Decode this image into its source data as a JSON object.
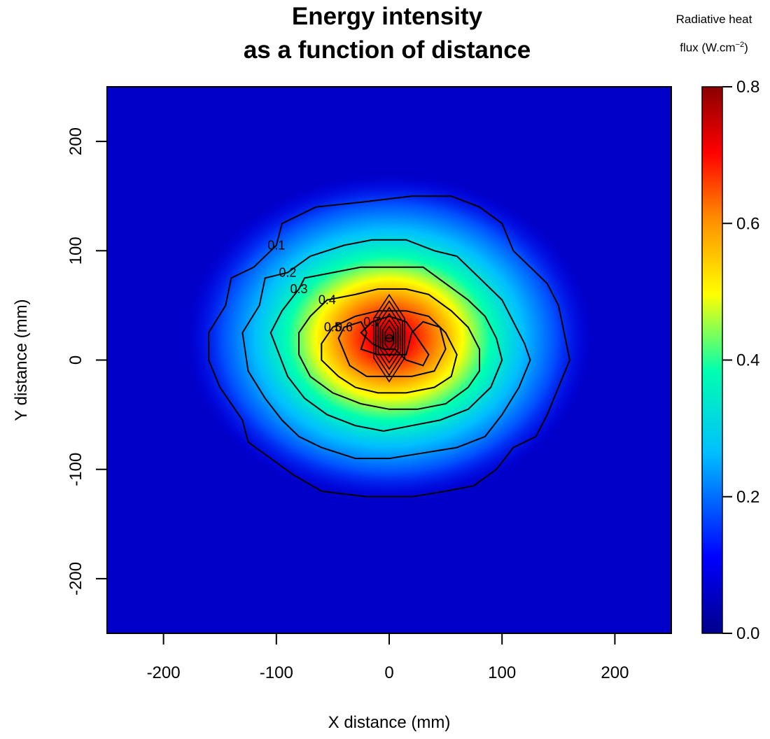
{
  "chart_data": {
    "type": "heatmap",
    "title_lines": [
      "Energy intensity",
      "as a function of distance"
    ],
    "xlabel": "X distance (mm)",
    "ylabel": "Y distance (mm)",
    "xlim": [
      -250,
      250
    ],
    "ylim": [
      -250,
      250
    ],
    "xticks": [
      -200,
      -100,
      0,
      100,
      200
    ],
    "yticks": [
      -200,
      -100,
      0,
      100,
      200
    ],
    "colorbar": {
      "title_line1": "Radiative heat",
      "title_line2": "flux (W.cm",
      "title_exp": "−2",
      "title_end": ")",
      "range": [
        0.0,
        0.8
      ],
      "ticks": [
        "0.0",
        "0.2",
        "0.4",
        "0.6",
        "0.8"
      ],
      "colors": [
        "#00008b",
        "#0000ff",
        "#00bfff",
        "#00ffb0",
        "#ffff00",
        "#ff8c00",
        "#ff0000",
        "#8b0000"
      ]
    },
    "peak": {
      "x": 0,
      "y": 20,
      "value": 0.8
    },
    "contours": [
      {
        "level": 0.1,
        "label": "0.1",
        "points": [
          [
            -160,
            25
          ],
          [
            -145,
            50
          ],
          [
            -140,
            75
          ],
          [
            -120,
            85
          ],
          [
            -100,
            105
          ],
          [
            -95,
            125
          ],
          [
            -65,
            140
          ],
          [
            -20,
            145
          ],
          [
            20,
            150
          ],
          [
            55,
            150
          ],
          [
            80,
            140
          ],
          [
            100,
            125
          ],
          [
            110,
            100
          ],
          [
            125,
            85
          ],
          [
            140,
            70
          ],
          [
            150,
            50
          ],
          [
            155,
            25
          ],
          [
            160,
            0
          ],
          [
            150,
            -25
          ],
          [
            140,
            -50
          ],
          [
            130,
            -70
          ],
          [
            110,
            -80
          ],
          [
            95,
            -100
          ],
          [
            75,
            -115
          ],
          [
            50,
            -120
          ],
          [
            20,
            -125
          ],
          [
            -20,
            -125
          ],
          [
            -60,
            -120
          ],
          [
            -85,
            -105
          ],
          [
            -105,
            -90
          ],
          [
            -125,
            -75
          ],
          [
            -130,
            -55
          ],
          [
            -150,
            -25
          ],
          [
            -160,
            0
          ]
        ]
      },
      {
        "level": 0.2,
        "label": "0.2",
        "points": [
          [
            -130,
            25
          ],
          [
            -115,
            50
          ],
          [
            -110,
            75
          ],
          [
            -90,
            80
          ],
          [
            -70,
            95
          ],
          [
            -40,
            105
          ],
          [
            -15,
            110
          ],
          [
            15,
            110
          ],
          [
            40,
            100
          ],
          [
            60,
            95
          ],
          [
            80,
            75
          ],
          [
            100,
            55
          ],
          [
            110,
            35
          ],
          [
            120,
            15
          ],
          [
            125,
            0
          ],
          [
            115,
            -25
          ],
          [
            100,
            -50
          ],
          [
            85,
            -70
          ],
          [
            60,
            -80
          ],
          [
            30,
            -85
          ],
          [
            0,
            -90
          ],
          [
            -30,
            -90
          ],
          [
            -60,
            -80
          ],
          [
            -80,
            -70
          ],
          [
            -95,
            -55
          ],
          [
            -110,
            -35
          ],
          [
            -125,
            -10
          ]
        ]
      },
      {
        "level": 0.3,
        "label": "0.3",
        "points": [
          [
            -105,
            25
          ],
          [
            -95,
            45
          ],
          [
            -80,
            65
          ],
          [
            -75,
            75
          ],
          [
            -50,
            80
          ],
          [
            -25,
            85
          ],
          [
            0,
            85
          ],
          [
            30,
            85
          ],
          [
            50,
            70
          ],
          [
            70,
            55
          ],
          [
            85,
            40
          ],
          [
            95,
            20
          ],
          [
            100,
            0
          ],
          [
            90,
            -25
          ],
          [
            70,
            -45
          ],
          [
            45,
            -55
          ],
          [
            20,
            -60
          ],
          [
            -5,
            -65
          ],
          [
            -30,
            -60
          ],
          [
            -55,
            -50
          ],
          [
            -75,
            -35
          ],
          [
            -90,
            -15
          ]
        ]
      },
      {
        "level": 0.4,
        "label": "0.4",
        "points": [
          [
            -80,
            25
          ],
          [
            -70,
            40
          ],
          [
            -55,
            55
          ],
          [
            -30,
            60
          ],
          [
            -10,
            65
          ],
          [
            15,
            65
          ],
          [
            35,
            60
          ],
          [
            55,
            45
          ],
          [
            70,
            30
          ],
          [
            80,
            10
          ],
          [
            80,
            -10
          ],
          [
            70,
            -25
          ],
          [
            50,
            -40
          ],
          [
            25,
            -45
          ],
          [
            0,
            -45
          ],
          [
            -25,
            -40
          ],
          [
            -50,
            -30
          ],
          [
            -70,
            -15
          ],
          [
            -80,
            5
          ]
        ]
      },
      {
        "level": 0.5,
        "label": "0.5",
        "points": [
          [
            -60,
            15
          ],
          [
            -50,
            30
          ],
          [
            -30,
            40
          ],
          [
            -10,
            45
          ],
          [
            15,
            45
          ],
          [
            35,
            40
          ],
          [
            50,
            25
          ],
          [
            60,
            5
          ],
          [
            55,
            -15
          ],
          [
            40,
            -25
          ],
          [
            15,
            -30
          ],
          [
            -10,
            -30
          ],
          [
            -30,
            -25
          ],
          [
            -45,
            -15
          ],
          [
            -60,
            0
          ]
        ]
      },
      {
        "level": 0.6,
        "label": "0.6",
        "points": [
          [
            -45,
            20
          ],
          [
            -40,
            30
          ],
          [
            -25,
            35
          ],
          [
            -20,
            25
          ],
          [
            -25,
            10
          ],
          [
            -10,
            5
          ],
          [
            15,
            5
          ],
          [
            20,
            25
          ],
          [
            30,
            35
          ],
          [
            45,
            30
          ],
          [
            50,
            10
          ],
          [
            40,
            -10
          ],
          [
            20,
            -15
          ],
          [
            0,
            -15
          ],
          [
            -20,
            -15
          ],
          [
            -35,
            -5
          ]
        ]
      },
      {
        "level": 0.7,
        "label": "0.7",
        "points": [
          [
            -25,
            25
          ],
          [
            -15,
            35
          ],
          [
            0,
            40
          ],
          [
            15,
            35
          ],
          [
            25,
            20
          ],
          [
            35,
            5
          ],
          [
            30,
            -5
          ],
          [
            15,
            0
          ],
          [
            5,
            10
          ],
          [
            -5,
            10
          ],
          [
            -15,
            15
          ]
        ]
      }
    ]
  }
}
